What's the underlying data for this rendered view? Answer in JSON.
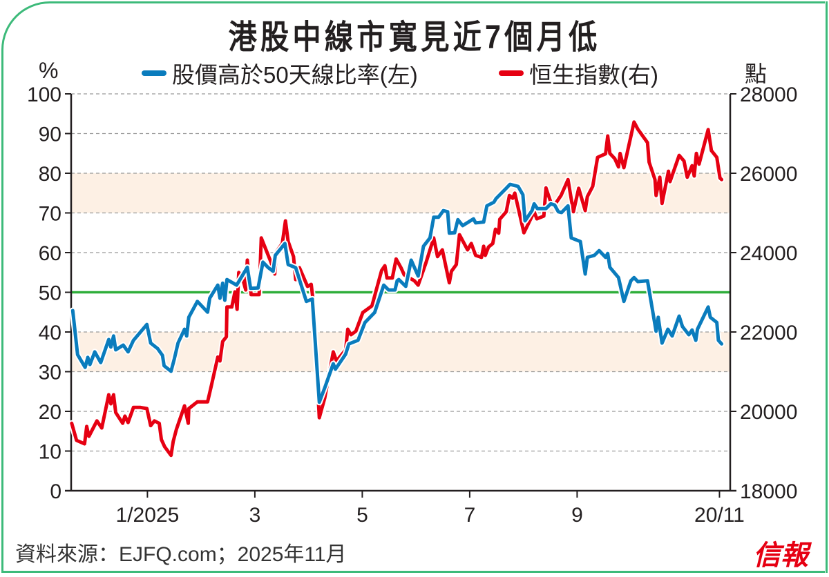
{
  "title": "港股中線市寬見近7個月低",
  "left_unit": "%",
  "right_unit": "點",
  "source": "資料來源：EJFQ.com；2025年11月",
  "logo": "信報",
  "colors": {
    "blue": "#0a7cbd",
    "red": "#e60012",
    "green": "#2fae3a",
    "band": "#fdf0e4",
    "border": "#3dba7a"
  },
  "chart_data": {
    "type": "line",
    "title": "港股中線市寬見近7個月低",
    "xlabel": "",
    "ylabel_left": "%",
    "ylabel_right": "點",
    "xlim": [
      -0.42,
      11.85
    ],
    "ylim_left": [
      0,
      100
    ],
    "ylim_right": [
      18000,
      28000
    ],
    "left_ticks": [
      "100",
      "90",
      "80",
      "70",
      "60",
      "50",
      "40",
      "30",
      "20",
      "10",
      "0"
    ],
    "right_ticks": [
      "28000",
      "26000",
      "24000",
      "22000",
      "20000",
      "18000"
    ],
    "x_ticks": [
      {
        "value": 1,
        "label": "1/2025"
      },
      {
        "value": 3,
        "label": "3"
      },
      {
        "value": 5,
        "label": "5"
      },
      {
        "value": 7,
        "label": "7"
      },
      {
        "value": 9,
        "label": "9"
      },
      {
        "value": 11.65,
        "label": "20/11"
      }
    ],
    "x_units": "month of 2025 (1 = start of Jan)",
    "grid": true,
    "shaded_bands_left": [
      [
        30,
        40
      ],
      [
        70,
        80
      ]
    ],
    "reference_line_left": 50,
    "legend": {
      "placement": "top",
      "entries": [
        "股價高於50天線比率(左)",
        "恒生指數(右)"
      ]
    },
    "series": [
      {
        "name": "股價高於50天線比率(左)",
        "axis": "left",
        "color": "#0a7cbd",
        "points": [
          [
            -0.39,
            45.4
          ],
          [
            -0.3,
            34.3
          ],
          [
            -0.16,
            31.1
          ],
          [
            -0.11,
            33.6
          ],
          [
            -0.07,
            31.8
          ],
          [
            0.02,
            35.0
          ],
          [
            0.13,
            32.3
          ],
          [
            0.28,
            38.1
          ],
          [
            0.32,
            36.2
          ],
          [
            0.37,
            39.0
          ],
          [
            0.41,
            35.5
          ],
          [
            0.55,
            36.7
          ],
          [
            0.64,
            35.0
          ],
          [
            0.74,
            37.9
          ],
          [
            0.99,
            41.9
          ],
          [
            1.06,
            37.2
          ],
          [
            1.19,
            35.8
          ],
          [
            1.28,
            34.1
          ],
          [
            1.31,
            31.5
          ],
          [
            1.44,
            30.1
          ],
          [
            1.5,
            33.2
          ],
          [
            1.57,
            37.2
          ],
          [
            1.69,
            40.7
          ],
          [
            1.73,
            39.0
          ],
          [
            1.77,
            43.7
          ],
          [
            1.93,
            47.7
          ],
          [
            2.12,
            45.0
          ],
          [
            2.16,
            48.5
          ],
          [
            2.31,
            51.8
          ],
          [
            2.35,
            48.5
          ],
          [
            2.4,
            52.3
          ],
          [
            2.44,
            48.0
          ],
          [
            2.48,
            53.2
          ],
          [
            2.66,
            51.8
          ],
          [
            2.86,
            56.3
          ],
          [
            2.92,
            51.0
          ],
          [
            3.06,
            51.1
          ],
          [
            3.15,
            57.6
          ],
          [
            3.25,
            56.2
          ],
          [
            3.34,
            55.3
          ],
          [
            3.38,
            59.3
          ],
          [
            3.56,
            62.3
          ],
          [
            3.62,
            57.0
          ],
          [
            3.76,
            56.2
          ],
          [
            3.96,
            47.7
          ],
          [
            4.07,
            48.3
          ],
          [
            4.2,
            22.3
          ],
          [
            4.3,
            25.9
          ],
          [
            4.46,
            32.0
          ],
          [
            4.5,
            30.6
          ],
          [
            4.69,
            34.4
          ],
          [
            4.75,
            37.0
          ],
          [
            4.92,
            37.9
          ],
          [
            5.05,
            42.4
          ],
          [
            5.23,
            44.9
          ],
          [
            5.4,
            51.8
          ],
          [
            5.49,
            50.6
          ],
          [
            5.61,
            50.6
          ],
          [
            5.65,
            52.9
          ],
          [
            5.68,
            53.2
          ],
          [
            5.81,
            51.5
          ],
          [
            5.91,
            58.1
          ],
          [
            6.04,
            54.1
          ],
          [
            6.14,
            61.6
          ],
          [
            6.26,
            63.7
          ],
          [
            6.33,
            68.9
          ],
          [
            6.42,
            68.9
          ],
          [
            6.51,
            70.6
          ],
          [
            6.59,
            70.3
          ],
          [
            6.62,
            64.9
          ],
          [
            6.72,
            65.0
          ],
          [
            6.78,
            68.3
          ],
          [
            6.87,
            66.8
          ],
          [
            7.07,
            68.5
          ],
          [
            7.11,
            67.5
          ],
          [
            7.26,
            67.7
          ],
          [
            7.32,
            71.8
          ],
          [
            7.45,
            72.7
          ],
          [
            7.49,
            73.6
          ],
          [
            7.68,
            76.2
          ],
          [
            7.75,
            77.2
          ],
          [
            7.9,
            76.7
          ],
          [
            7.99,
            74.6
          ],
          [
            8.03,
            68.0
          ],
          [
            8.16,
            70.6
          ],
          [
            8.2,
            72.3
          ],
          [
            8.26,
            71.1
          ],
          [
            8.42,
            71.1
          ],
          [
            8.51,
            72.3
          ],
          [
            8.58,
            72.0
          ],
          [
            8.65,
            70.3
          ],
          [
            8.71,
            70.1
          ],
          [
            8.83,
            71.8
          ],
          [
            8.89,
            63.7
          ],
          [
            9.06,
            62.8
          ],
          [
            9.15,
            54.6
          ],
          [
            9.19,
            58.8
          ],
          [
            9.32,
            59.3
          ],
          [
            9.41,
            60.5
          ],
          [
            9.53,
            58.8
          ],
          [
            9.57,
            59.8
          ],
          [
            9.61,
            56.3
          ],
          [
            9.77,
            53.7
          ],
          [
            9.87,
            47.7
          ],
          [
            10.0,
            52.9
          ],
          [
            10.06,
            53.7
          ],
          [
            10.13,
            52.7
          ],
          [
            10.31,
            52.9
          ],
          [
            10.47,
            40.2
          ],
          [
            10.51,
            43.7
          ],
          [
            10.58,
            37.2
          ],
          [
            10.69,
            40.7
          ],
          [
            10.77,
            39.0
          ],
          [
            10.9,
            44.0
          ],
          [
            10.96,
            41.4
          ],
          [
            11.08,
            39.3
          ],
          [
            11.14,
            40.5
          ],
          [
            11.21,
            37.9
          ],
          [
            11.24,
            40.7
          ],
          [
            11.44,
            46.3
          ],
          [
            11.48,
            43.7
          ],
          [
            11.6,
            42.4
          ],
          [
            11.63,
            37.9
          ],
          [
            11.69,
            37.0
          ]
        ]
      },
      {
        "name": "恒生指數(右)",
        "axis": "right",
        "color": "#e60012",
        "points": [
          [
            -0.41,
            19700
          ],
          [
            -0.32,
            19270
          ],
          [
            -0.17,
            19180
          ],
          [
            -0.13,
            19620
          ],
          [
            -0.09,
            19370
          ],
          [
            0.06,
            19760
          ],
          [
            0.15,
            19580
          ],
          [
            0.28,
            20420
          ],
          [
            0.32,
            20190
          ],
          [
            0.37,
            20420
          ],
          [
            0.41,
            19970
          ],
          [
            0.54,
            19700
          ],
          [
            0.58,
            19880
          ],
          [
            0.64,
            19720
          ],
          [
            0.74,
            20100
          ],
          [
            0.87,
            20100
          ],
          [
            0.99,
            20070
          ],
          [
            1.06,
            19640
          ],
          [
            1.13,
            19760
          ],
          [
            1.22,
            19700
          ],
          [
            1.26,
            19290
          ],
          [
            1.32,
            19110
          ],
          [
            1.44,
            18890
          ],
          [
            1.48,
            19240
          ],
          [
            1.54,
            19550
          ],
          [
            1.69,
            20140
          ],
          [
            1.76,
            19700
          ],
          [
            1.77,
            20070
          ],
          [
            1.93,
            20240
          ],
          [
            2.12,
            20240
          ],
          [
            2.18,
            20590
          ],
          [
            2.31,
            21370
          ],
          [
            2.35,
            21270
          ],
          [
            2.4,
            21760
          ],
          [
            2.47,
            21880
          ],
          [
            2.48,
            22630
          ],
          [
            2.57,
            22630
          ],
          [
            2.63,
            23010
          ],
          [
            2.67,
            22570
          ],
          [
            2.7,
            23500
          ],
          [
            2.76,
            23410
          ],
          [
            2.83,
            23060
          ],
          [
            2.86,
            23810
          ],
          [
            2.93,
            22940
          ],
          [
            3.08,
            22940
          ],
          [
            3.12,
            24370
          ],
          [
            3.3,
            23760
          ],
          [
            3.37,
            23460
          ],
          [
            3.4,
            24020
          ],
          [
            3.51,
            24230
          ],
          [
            3.57,
            24800
          ],
          [
            3.62,
            24280
          ],
          [
            3.72,
            23900
          ],
          [
            3.76,
            23320
          ],
          [
            3.83,
            23620
          ],
          [
            3.98,
            23150
          ],
          [
            4.05,
            23200
          ],
          [
            4.08,
            22840
          ],
          [
            4.2,
            19840
          ],
          [
            4.3,
            20330
          ],
          [
            4.46,
            21500
          ],
          [
            4.52,
            21270
          ],
          [
            4.69,
            21550
          ],
          [
            4.73,
            22070
          ],
          [
            4.79,
            21930
          ],
          [
            4.88,
            22020
          ],
          [
            5.01,
            22490
          ],
          [
            5.18,
            22660
          ],
          [
            5.36,
            23550
          ],
          [
            5.42,
            23670
          ],
          [
            5.46,
            23360
          ],
          [
            5.56,
            23360
          ],
          [
            5.63,
            23840
          ],
          [
            5.72,
            23620
          ],
          [
            5.78,
            23440
          ],
          [
            5.97,
            23290
          ],
          [
            6.04,
            23180
          ],
          [
            6.19,
            23760
          ],
          [
            6.33,
            24370
          ],
          [
            6.4,
            23900
          ],
          [
            6.49,
            24070
          ],
          [
            6.62,
            23240
          ],
          [
            6.66,
            23530
          ],
          [
            6.75,
            23700
          ],
          [
            6.81,
            24450
          ],
          [
            6.96,
            24070
          ],
          [
            7.03,
            24230
          ],
          [
            7.11,
            23930
          ],
          [
            7.22,
            23880
          ],
          [
            7.26,
            24160
          ],
          [
            7.29,
            23930
          ],
          [
            7.35,
            24140
          ],
          [
            7.43,
            24230
          ],
          [
            7.48,
            24590
          ],
          [
            7.54,
            24490
          ],
          [
            7.56,
            24840
          ],
          [
            7.68,
            25030
          ],
          [
            7.74,
            25440
          ],
          [
            7.8,
            25370
          ],
          [
            7.84,
            25500
          ],
          [
            8.01,
            24500
          ],
          [
            8.2,
            25030
          ],
          [
            8.25,
            24850
          ],
          [
            8.38,
            24920
          ],
          [
            8.42,
            25630
          ],
          [
            8.51,
            25270
          ],
          [
            8.58,
            25200
          ],
          [
            8.7,
            25440
          ],
          [
            8.83,
            25840
          ],
          [
            8.93,
            25030
          ],
          [
            9.03,
            25620
          ],
          [
            9.15,
            25060
          ],
          [
            9.19,
            25410
          ],
          [
            9.29,
            25670
          ],
          [
            9.38,
            26400
          ],
          [
            9.53,
            26490
          ],
          [
            9.57,
            26940
          ],
          [
            9.61,
            26500
          ],
          [
            9.7,
            26370
          ],
          [
            9.77,
            26160
          ],
          [
            9.8,
            26500
          ],
          [
            9.87,
            26140
          ],
          [
            10.06,
            27290
          ],
          [
            10.13,
            27110
          ],
          [
            10.31,
            26770
          ],
          [
            10.34,
            26280
          ],
          [
            10.45,
            25840
          ],
          [
            10.47,
            25440
          ],
          [
            10.54,
            25900
          ],
          [
            10.58,
            25240
          ],
          [
            10.7,
            26050
          ],
          [
            10.73,
            25790
          ],
          [
            10.9,
            26450
          ],
          [
            10.99,
            26310
          ],
          [
            11.05,
            25900
          ],
          [
            11.14,
            26190
          ],
          [
            11.18,
            25930
          ],
          [
            11.22,
            26500
          ],
          [
            11.27,
            26230
          ],
          [
            11.44,
            27100
          ],
          [
            11.5,
            26570
          ],
          [
            11.6,
            26400
          ],
          [
            11.66,
            25880
          ],
          [
            11.69,
            25840
          ]
        ]
      }
    ]
  }
}
